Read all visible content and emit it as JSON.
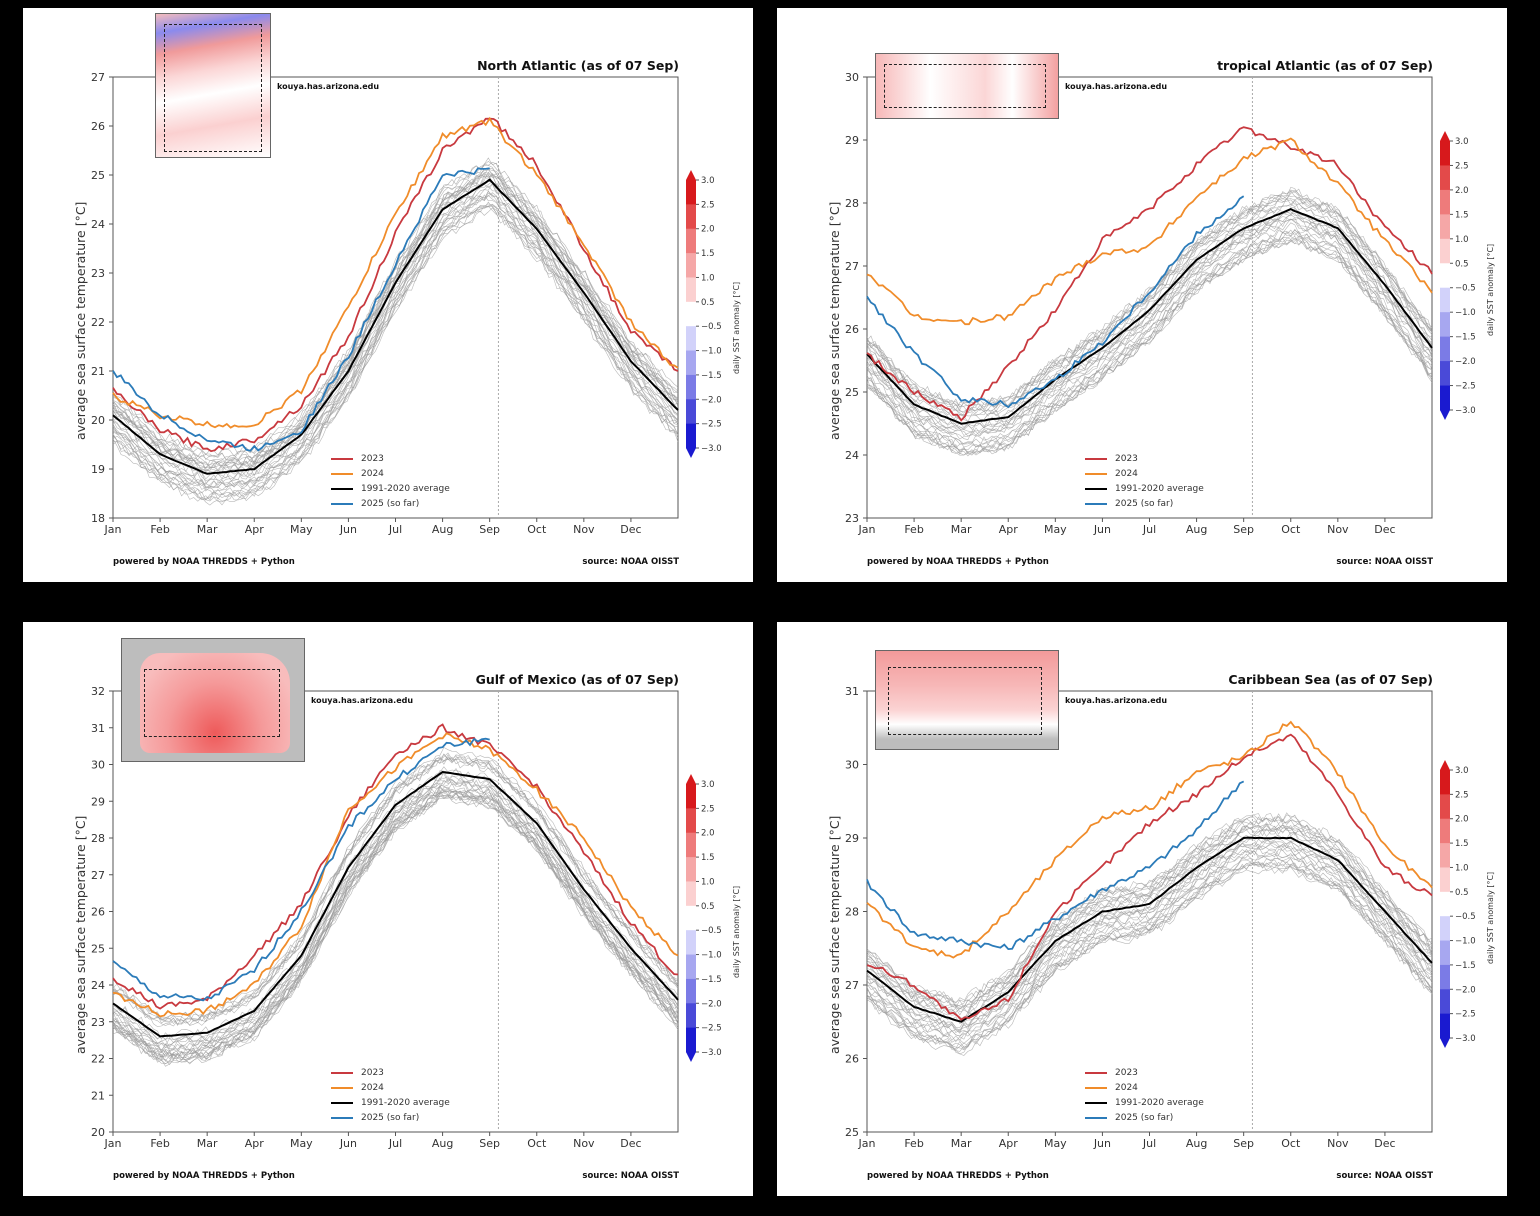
{
  "common": {
    "credit": "kouya.has.arizona.edu",
    "footer_left": "powered by NOAA THREDDS + Python",
    "footer_right": "source: NOAA OISST",
    "ylabel": "average sea surface temperature [°C]",
    "colorbar_label": "daily SST anomaly [°C]",
    "colorbar_ticks": [
      "3.0",
      "2.5",
      "2.0",
      "1.5",
      "1.0",
      "0.5",
      "−0.5",
      "−1.0",
      "−1.5",
      "−2.0",
      "−2.5",
      "−3.0"
    ],
    "colorbar_colors": [
      "#d7191c",
      "#e34a4a",
      "#ee7b7b",
      "#f5a7a7",
      "#fbd0d0",
      "#ffffff",
      "#d2d2fa",
      "#a7a7f0",
      "#7b7be6",
      "#4a4ad8",
      "#1a1ad0"
    ],
    "months": [
      "Jan",
      "Feb",
      "Mar",
      "Apr",
      "May",
      "Jun",
      "Jul",
      "Aug",
      "Sep",
      "Oct",
      "Nov",
      "Dec"
    ],
    "legend": [
      {
        "label": "2023",
        "color": "#c8393f"
      },
      {
        "label": "2024",
        "color": "#f08c2a"
      },
      {
        "label": "1991-2020 average",
        "color": "#000000"
      },
      {
        "label": "2025 (so far)",
        "color": "#2b7bb9"
      }
    ],
    "as_of_marker": "07 Sep"
  },
  "chart_data": [
    {
      "type": "line",
      "title": "North Atlantic (as of 07 Sep)",
      "xlabel": "",
      "ylabel": "average sea surface temperature [°C]",
      "ylim": [
        18,
        27
      ],
      "yticks": [
        18,
        19,
        20,
        21,
        22,
        23,
        24,
        25,
        26,
        27
      ],
      "x": [
        "Jan 1",
        "Feb 1",
        "Mar 1",
        "Apr 1",
        "May 1",
        "Jun 1",
        "Jul 1",
        "Aug 1",
        "Sep 1",
        "Oct 1",
        "Nov 1",
        "Dec 1",
        "Dec 31"
      ],
      "series": [
        {
          "name": "2023",
          "values": [
            20.6,
            19.8,
            19.4,
            19.6,
            20.3,
            21.7,
            23.8,
            25.5,
            26.2,
            25.2,
            23.5,
            21.8,
            21.0
          ]
        },
        {
          "name": "2024",
          "values": [
            20.5,
            20.1,
            19.9,
            19.9,
            20.6,
            22.3,
            24.2,
            25.8,
            26.1,
            25.0,
            23.6,
            22.0,
            21.0
          ]
        },
        {
          "name": "1991-2020 average",
          "values": [
            20.1,
            19.3,
            18.9,
            19.0,
            19.7,
            21.0,
            22.8,
            24.3,
            24.9,
            23.9,
            22.6,
            21.2,
            20.2
          ]
        },
        {
          "name": "2025 (so far)",
          "values": [
            21.0,
            20.1,
            19.6,
            19.4,
            19.8,
            21.3,
            23.2,
            25.0,
            25.1
          ]
        }
      ],
      "inset_map": "North Atlantic SST anomaly"
    },
    {
      "type": "line",
      "title": "tropical Atlantic (as of 07 Sep)",
      "xlabel": "",
      "ylabel": "average sea surface temperature [°C]",
      "ylim": [
        23,
        30
      ],
      "yticks": [
        23,
        24,
        25,
        26,
        27,
        28,
        29,
        30
      ],
      "x": [
        "Jan 1",
        "Feb 1",
        "Mar 1",
        "Apr 1",
        "May 1",
        "Jun 1",
        "Jul 1",
        "Aug 1",
        "Sep 1",
        "Oct 1",
        "Nov 1",
        "Dec 1",
        "Dec 31"
      ],
      "series": [
        {
          "name": "2023",
          "values": [
            25.6,
            25.0,
            24.6,
            25.4,
            26.3,
            27.4,
            27.9,
            28.6,
            29.2,
            28.9,
            28.6,
            27.6,
            26.9
          ]
        },
        {
          "name": "2024",
          "values": [
            26.9,
            26.2,
            26.1,
            26.2,
            26.8,
            27.2,
            27.3,
            28.1,
            28.7,
            29.0,
            28.3,
            27.4,
            26.6
          ]
        },
        {
          "name": "1991-2020 average",
          "values": [
            25.6,
            24.8,
            24.5,
            24.6,
            25.2,
            25.7,
            26.3,
            27.1,
            27.6,
            27.9,
            27.6,
            26.7,
            25.7
          ]
        },
        {
          "name": "2025 (so far)",
          "values": [
            26.5,
            25.6,
            24.9,
            24.8,
            25.2,
            25.8,
            26.6,
            27.5,
            28.1
          ]
        }
      ],
      "inset_map": "tropical Atlantic SST anomaly"
    },
    {
      "type": "line",
      "title": "Gulf of Mexico (as of 07 Sep)",
      "xlabel": "",
      "ylabel": "average sea surface temperature [°C]",
      "ylim": [
        20,
        32
      ],
      "yticks": [
        20,
        21,
        22,
        23,
        24,
        25,
        26,
        27,
        28,
        29,
        30,
        31,
        32
      ],
      "x": [
        "Jan 1",
        "Feb 1",
        "Mar 1",
        "Apr 1",
        "May 1",
        "Jun 1",
        "Jul 1",
        "Aug 1",
        "Sep 1",
        "Oct 1",
        "Nov 1",
        "Dec 1",
        "Dec 31"
      ],
      "series": [
        {
          "name": "2023",
          "values": [
            24.2,
            23.4,
            23.6,
            24.8,
            26.2,
            28.6,
            30.3,
            31.0,
            30.5,
            29.4,
            27.6,
            25.7,
            24.2
          ]
        },
        {
          "name": "2024",
          "values": [
            23.8,
            23.2,
            23.3,
            24.0,
            25.6,
            28.8,
            29.9,
            30.8,
            30.4,
            29.3,
            28.0,
            26.1,
            24.8
          ]
        },
        {
          "name": "1991-2020 average",
          "values": [
            23.5,
            22.6,
            22.7,
            23.3,
            24.8,
            27.2,
            28.9,
            29.8,
            29.6,
            28.4,
            26.6,
            25.0,
            23.6
          ]
        },
        {
          "name": "2025 (so far)",
          "values": [
            24.6,
            23.7,
            23.6,
            24.4,
            26.0,
            28.3,
            29.6,
            30.5,
            30.7
          ]
        }
      ],
      "inset_map": "Gulf of Mexico SST anomaly"
    },
    {
      "type": "line",
      "title": "Caribbean Sea (as of 07 Sep)",
      "xlabel": "",
      "ylabel": "average sea surface temperature [°C]",
      "ylim": [
        25,
        31
      ],
      "yticks": [
        25,
        26,
        27,
        28,
        29,
        30,
        31
      ],
      "x": [
        "Jan 1",
        "Feb 1",
        "Mar 1",
        "Apr 1",
        "May 1",
        "Jun 1",
        "Jul 1",
        "Aug 1",
        "Sep 1",
        "Oct 1",
        "Nov 1",
        "Dec 1",
        "Dec 31"
      ],
      "series": [
        {
          "name": "2023",
          "values": [
            27.3,
            27.0,
            26.5,
            26.8,
            28.0,
            28.6,
            29.2,
            29.6,
            30.1,
            30.4,
            29.6,
            28.6,
            28.2
          ]
        },
        {
          "name": "2024",
          "values": [
            28.1,
            27.5,
            27.4,
            28.0,
            28.7,
            29.3,
            29.4,
            29.9,
            30.1,
            30.6,
            29.9,
            28.9,
            28.3
          ]
        },
        {
          "name": "1991-2020 average",
          "values": [
            27.2,
            26.7,
            26.5,
            26.9,
            27.6,
            28.0,
            28.1,
            28.6,
            29.0,
            29.0,
            28.7,
            28.0,
            27.3
          ]
        },
        {
          "name": "2025 (so far)",
          "values": [
            28.4,
            27.7,
            27.6,
            27.5,
            27.9,
            28.3,
            28.6,
            29.1,
            29.8
          ]
        }
      ],
      "inset_map": "Caribbean Sea SST anomaly"
    }
  ]
}
